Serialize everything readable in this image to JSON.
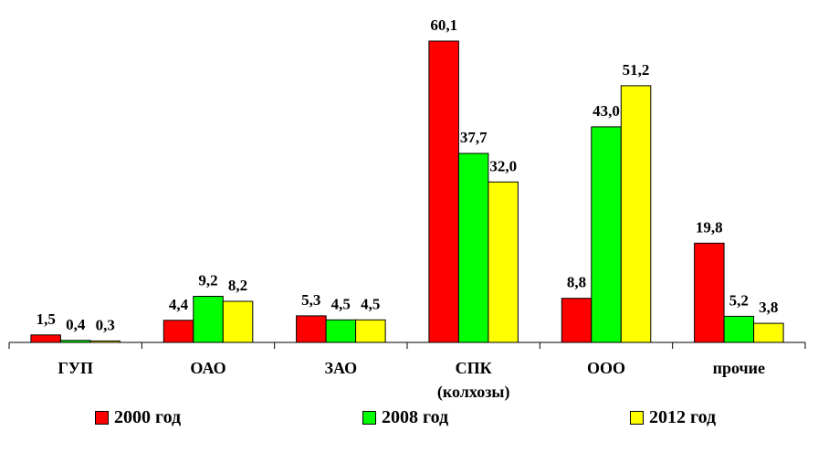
{
  "chart_data": {
    "type": "bar",
    "categories": [
      "ГУП",
      "ОАО",
      "ЗАО",
      "СПК\n(колхозы)",
      "ООО",
      "прочие"
    ],
    "series": [
      {
        "name": "2000 год",
        "color": "#ff0000",
        "values": [
          1.5,
          4.4,
          5.3,
          60.1,
          8.8,
          19.8
        ],
        "labels": [
          "1,5",
          "4,4",
          "5,3",
          "60,1",
          "8,8",
          "19,8"
        ]
      },
      {
        "name": "2008 год",
        "color": "#00ff00",
        "values": [
          0.4,
          9.2,
          4.5,
          37.7,
          43.0,
          5.2
        ],
        "labels": [
          "0,4",
          "9,2",
          "4,5",
          "37,7",
          "43,0",
          "5,2"
        ]
      },
      {
        "name": "2012 год",
        "color": "#ffff00",
        "values": [
          0.3,
          8.2,
          4.5,
          32.0,
          51.2,
          3.8
        ],
        "labels": [
          "0,3",
          "8,2",
          "4,5",
          "32,0",
          "51,2",
          "3,8"
        ]
      }
    ],
    "ylim": [
      0,
      60.1
    ],
    "grid": false,
    "legend_position": "bottom"
  }
}
